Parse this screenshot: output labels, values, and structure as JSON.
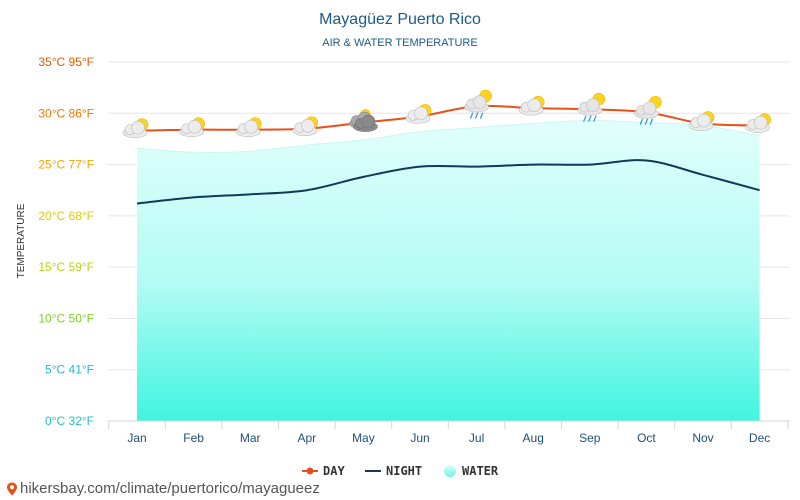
{
  "chart_data": {
    "type": "line",
    "title": "Mayagüez Puerto Rico",
    "subtitle": "AIR & WATER TEMPERATURE",
    "ylabel": "TEMPERATURE",
    "ylim": [
      0,
      35
    ],
    "yticks": [
      {
        "value": 0,
        "label": "0°C 32°F",
        "color": "#1fc3c3"
      },
      {
        "value": 5,
        "label": "5°C 41°F",
        "color": "#26b6d6"
      },
      {
        "value": 10,
        "label": "10°C 50°F",
        "color": "#7ed321"
      },
      {
        "value": 15,
        "label": "15°C 59°F",
        "color": "#b5d312"
      },
      {
        "value": 20,
        "label": "20°C 68°F",
        "color": "#e2c80e"
      },
      {
        "value": 25,
        "label": "25°C 77°F",
        "color": "#f0a800"
      },
      {
        "value": 30,
        "label": "30°C 86°F",
        "color": "#f07800"
      },
      {
        "value": 35,
        "label": "35°C 95°F",
        "color": "#e85a00"
      }
    ],
    "categories": [
      "Jan",
      "Feb",
      "Mar",
      "Apr",
      "May",
      "Jun",
      "Jul",
      "Aug",
      "Sep",
      "Oct",
      "Nov",
      "Dec"
    ],
    "series": [
      {
        "name": "DAY",
        "color": "#e8501a",
        "values": [
          28.3,
          28.4,
          28.4,
          28.5,
          29.1,
          29.7,
          30.7,
          30.5,
          30.4,
          30.1,
          29.0,
          28.8
        ]
      },
      {
        "name": "NIGHT",
        "color": "#12385a",
        "values": [
          21.2,
          21.8,
          22.1,
          22.5,
          23.8,
          24.8,
          24.8,
          25.0,
          25.0,
          25.4,
          24.0,
          22.5
        ]
      },
      {
        "name": "WATER",
        "color": "#7ff6ec",
        "values": [
          26.6,
          26.2,
          26.3,
          26.9,
          27.4,
          28.2,
          28.6,
          29.0,
          29.3,
          29.1,
          28.8,
          27.8
        ]
      }
    ],
    "weather_icons": [
      "partly-cloudy-icon",
      "partly-cloudy-icon",
      "partly-cloudy-icon",
      "partly-cloudy-icon",
      "cloudy-icon",
      "partly-cloudy-icon",
      "rain-shower-icon",
      "partly-cloudy-icon",
      "rain-shower-icon",
      "rain-shower-icon",
      "partly-cloudy-icon",
      "partly-cloudy-icon"
    ],
    "grid": true,
    "legend_position": "bottom"
  },
  "footer": {
    "url": "hikersbay.com/climate/puertorico/mayagueez",
    "pin_icon": "location-pin-icon"
  }
}
